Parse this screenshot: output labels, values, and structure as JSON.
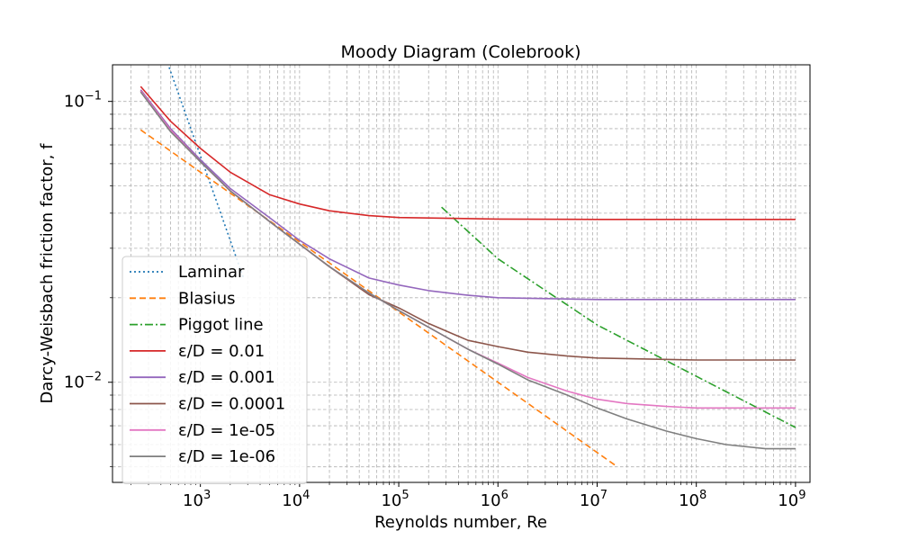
{
  "chart_data": {
    "type": "line",
    "title": "Moody Diagram (Colebrook)",
    "xlabel": "Reynolds number, Re",
    "ylabel": "Darcy-Weisbach friction factor, f",
    "x_scale": "log",
    "y_scale": "log",
    "xlim": [
      130,
      1400000000
    ],
    "ylim": [
      0.0044,
      0.135
    ],
    "grid": true,
    "legend_position": "lower-left",
    "x_ticks": [
      {
        "value": 1000,
        "mantissa": "10",
        "exp": "3"
      },
      {
        "value": 10000,
        "mantissa": "10",
        "exp": "4"
      },
      {
        "value": 100000,
        "mantissa": "10",
        "exp": "5"
      },
      {
        "value": 1000000,
        "mantissa": "10",
        "exp": "6"
      },
      {
        "value": 10000000,
        "mantissa": "10",
        "exp": "7"
      },
      {
        "value": 100000000,
        "mantissa": "10",
        "exp": "8"
      },
      {
        "value": 1000000000,
        "mantissa": "10",
        "exp": "9"
      }
    ],
    "y_ticks": [
      {
        "value": 0.1,
        "mantissa": "10",
        "exp": "−1"
      },
      {
        "value": 0.01,
        "mantissa": "10",
        "exp": "−2"
      }
    ],
    "series": [
      {
        "name": "Laminar",
        "color": "#1f77b4",
        "style": "dotted",
        "x": [
          250,
          500,
          800,
          1000,
          1500,
          2000,
          2300,
          2700
        ],
        "y": [
          0.256,
          0.128,
          0.08,
          0.064,
          0.0427,
          0.032,
          0.0278,
          0.0237
        ]
      },
      {
        "name": "Blasius",
        "color": "#ff7f0e",
        "style": "dashed",
        "x": [
          250,
          1000,
          10000,
          100000,
          1000000,
          10000000,
          16000000
        ],
        "y": [
          0.0792,
          0.056,
          0.0316,
          0.0178,
          0.01,
          0.00562,
          0.005
        ]
      },
      {
        "name": "Piggot line",
        "color": "#2ca02c",
        "style": "dashdot",
        "x": [
          270000,
          1000000,
          10000000,
          100000000,
          1000000000
        ],
        "y": [
          0.042,
          0.0275,
          0.016,
          0.0105,
          0.0069
        ]
      },
      {
        "name": "ε/D = 0.01",
        "color": "#d62728",
        "style": "solid",
        "x": [
          250,
          500,
          1000,
          2000,
          5000,
          10000,
          20000,
          50000,
          100000,
          1000000,
          10000000,
          100000000,
          1000000000
        ],
        "y": [
          0.113,
          0.085,
          0.068,
          0.056,
          0.0465,
          0.0431,
          0.0408,
          0.0392,
          0.0386,
          0.0381,
          0.038,
          0.038,
          0.038
        ]
      },
      {
        "name": "ε/D = 0.001",
        "color": "#9467bd",
        "style": "solid",
        "x": [
          250,
          500,
          1000,
          2000,
          5000,
          10000,
          20000,
          50000,
          100000,
          200000,
          500000,
          1000000,
          10000000,
          100000000,
          1000000000
        ],
        "y": [
          0.11,
          0.08,
          0.062,
          0.049,
          0.0385,
          0.032,
          0.0275,
          0.0235,
          0.0222,
          0.0212,
          0.0204,
          0.02,
          0.0197,
          0.0197,
          0.0197
        ]
      },
      {
        "name": "ε/D = 0.0001",
        "color": "#8c564b",
        "style": "solid",
        "x": [
          250,
          500,
          1000,
          2000,
          5000,
          10000,
          20000,
          50000,
          100000,
          200000,
          500000,
          1000000,
          2000000,
          5000000,
          10000000,
          100000000,
          1000000000
        ],
        "y": [
          0.109,
          0.079,
          0.061,
          0.048,
          0.0373,
          0.031,
          0.0258,
          0.0205,
          0.0184,
          0.0162,
          0.0141,
          0.0134,
          0.0128,
          0.0124,
          0.0122,
          0.012,
          0.012
        ]
      },
      {
        "name": "ε/D = 1e-05",
        "color": "#e377c2",
        "style": "solid",
        "x": [
          250,
          500,
          1000,
          2000,
          5000,
          10000,
          20000,
          50000,
          100000,
          200000,
          500000,
          1000000,
          2000000,
          5000000,
          10000000,
          20000000,
          50000000,
          100000000,
          1000000000
        ],
        "y": [
          0.109,
          0.079,
          0.061,
          0.048,
          0.0373,
          0.031,
          0.0258,
          0.0208,
          0.018,
          0.0157,
          0.0131,
          0.0117,
          0.0104,
          0.0093,
          0.0087,
          0.0084,
          0.0082,
          0.0081,
          0.0081
        ]
      },
      {
        "name": "ε/D = 1e-06",
        "color": "#7f7f7f",
        "style": "solid",
        "x": [
          250,
          500,
          1000,
          2000,
          5000,
          10000,
          20000,
          50000,
          100000,
          200000,
          500000,
          1000000,
          2000000,
          5000000,
          10000000,
          20000000,
          50000000,
          100000000,
          200000000,
          500000000,
          1000000000
        ],
        "y": [
          0.108,
          0.078,
          0.061,
          0.048,
          0.0373,
          0.031,
          0.0258,
          0.0208,
          0.018,
          0.0157,
          0.0131,
          0.0116,
          0.0102,
          0.009,
          0.0081,
          0.0074,
          0.0067,
          0.0063,
          0.006,
          0.0058,
          0.0058
        ]
      }
    ]
  }
}
